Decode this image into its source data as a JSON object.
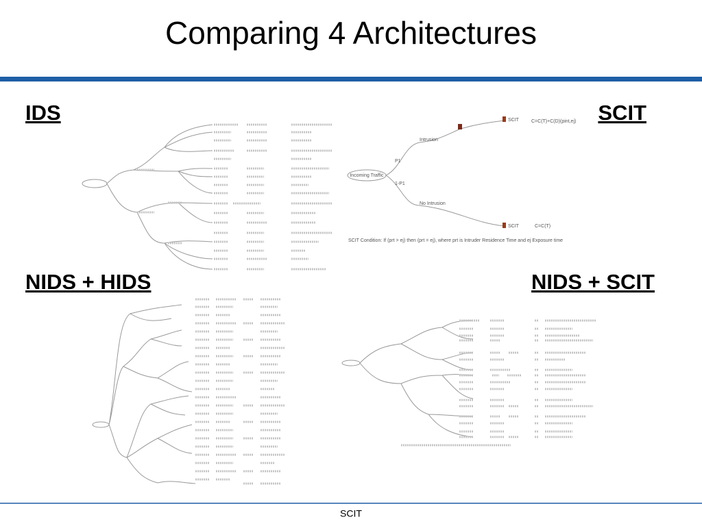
{
  "header": {
    "title": "Comparing 4 Architectures"
  },
  "sections": [
    {
      "label": "IDS"
    },
    {
      "label": "SCIT",
      "diagram": {
        "root": "Incoming Traffic",
        "p": "P1",
        "q": "1-P1",
        "intrusion": "Intrusion",
        "no_intrusion": "No Intrusion",
        "node_top": "SCIT",
        "node_bottom": "SCIT",
        "formula_top": "C=C(T)+C(D)(pint,ej)",
        "formula_bottom": "C=C(T)",
        "caption": "SCIT Condition: If (prt > ej) then (prt = ej), where prt is Intruder Residence Time and ej Exposure time"
      }
    },
    {
      "label": "NIDS + HIDS"
    },
    {
      "label": "NIDS + SCIT"
    }
  ],
  "footer": {
    "text": "SCIT"
  }
}
